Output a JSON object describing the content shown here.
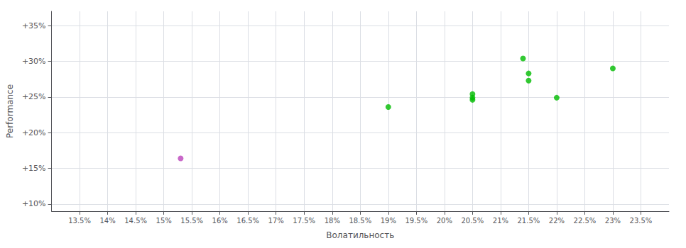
{
  "chart_data": {
    "type": "scatter",
    "xlabel": "Волатильность",
    "ylabel": "Performance",
    "xlim": [
      0.13,
      0.24
    ],
    "ylim": [
      0.09,
      0.37
    ],
    "xticks": [
      {
        "value": 0.135,
        "label": "13.5%"
      },
      {
        "value": 0.14,
        "label": "14%"
      },
      {
        "value": 0.145,
        "label": "14.5%"
      },
      {
        "value": 0.15,
        "label": "15%"
      },
      {
        "value": 0.155,
        "label": "15.5%"
      },
      {
        "value": 0.16,
        "label": "16%"
      },
      {
        "value": 0.165,
        "label": "16.5%"
      },
      {
        "value": 0.17,
        "label": "17%"
      },
      {
        "value": 0.175,
        "label": "17.5%"
      },
      {
        "value": 0.18,
        "label": "18%"
      },
      {
        "value": 0.185,
        "label": "18.5%"
      },
      {
        "value": 0.19,
        "label": "19%"
      },
      {
        "value": 0.195,
        "label": "19.5%"
      },
      {
        "value": 0.2,
        "label": "20%"
      },
      {
        "value": 0.205,
        "label": "20.5%"
      },
      {
        "value": 0.21,
        "label": "21%"
      },
      {
        "value": 0.215,
        "label": "21.5%"
      },
      {
        "value": 0.22,
        "label": "22%"
      },
      {
        "value": 0.225,
        "label": "22.5%"
      },
      {
        "value": 0.23,
        "label": "23%"
      },
      {
        "value": 0.235,
        "label": "23.5%"
      }
    ],
    "yticks": [
      {
        "value": 0.1,
        "label": "+10%"
      },
      {
        "value": 0.15,
        "label": "+15%"
      },
      {
        "value": 0.2,
        "label": "+20%"
      },
      {
        "value": 0.25,
        "label": "+25%"
      },
      {
        "value": 0.3,
        "label": "+30%"
      },
      {
        "value": 0.35,
        "label": "+35%"
      }
    ],
    "grid": true,
    "series": [
      {
        "color": "#00bb00",
        "x": [
          0.19,
          0.205,
          0.205,
          0.205,
          0.214,
          0.215,
          0.215,
          0.22,
          0.23
        ],
        "values": [
          0.236,
          0.254,
          0.249,
          0.246,
          0.304,
          0.283,
          0.273,
          0.249,
          0.29
        ]
      },
      {
        "color": "#bb44bb",
        "x": [
          0.153
        ],
        "values": [
          0.164
        ]
      }
    ]
  }
}
